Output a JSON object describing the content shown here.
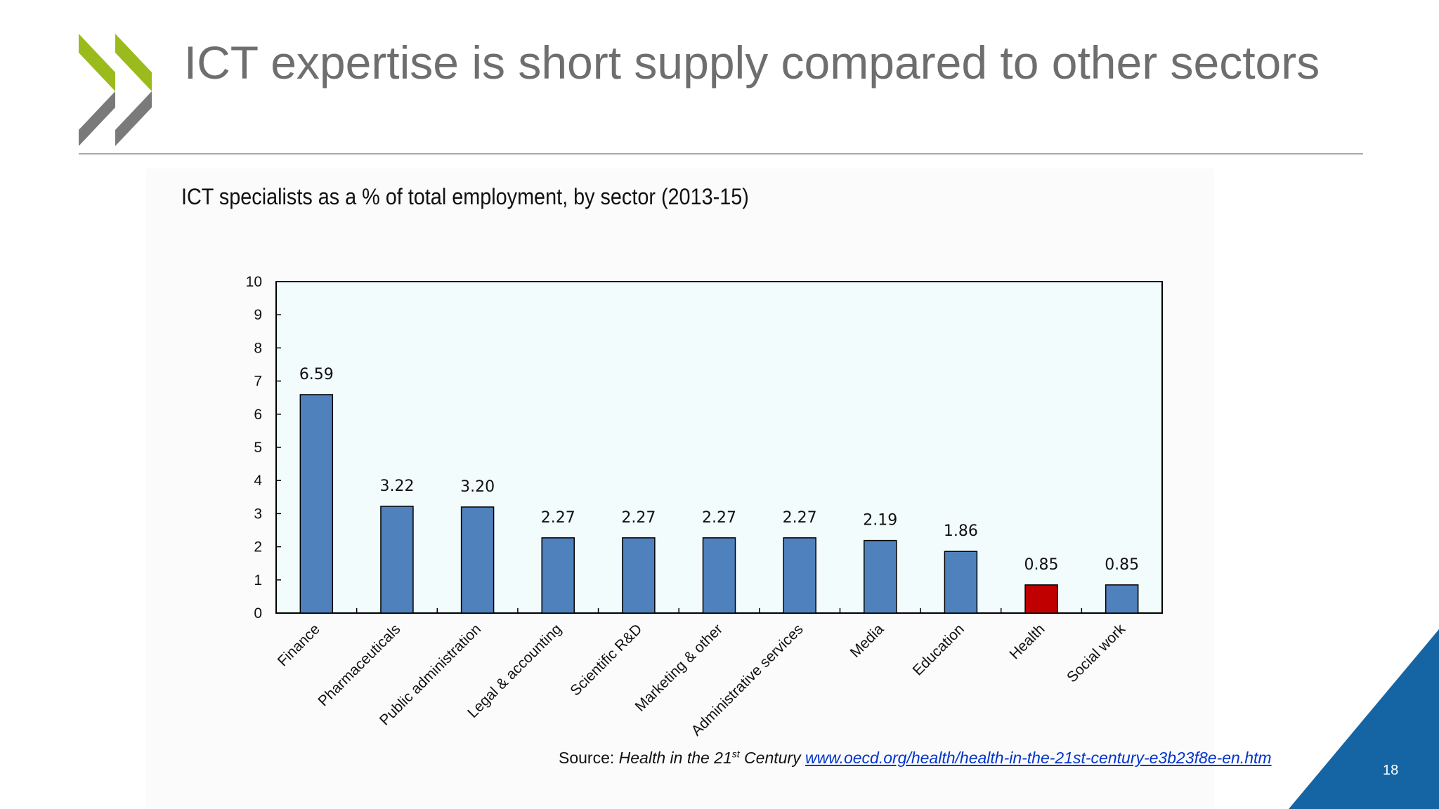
{
  "slide": {
    "title": "ICT expertise is short supply compared to other sectors",
    "page_number": "18",
    "colors": {
      "accent_green": "#9bbb1c",
      "logo_gray": "#7a7a7a",
      "corner_blue": "#1565a4",
      "bar_blue": "#4f81bd",
      "bar_highlight": "#c00000"
    }
  },
  "source": {
    "prefix": "Source: ",
    "italic_title": "Health in the 21",
    "sup": "st",
    "italic_after": " Century ",
    "link_text": "www.oecd.org/health/health-in-the-21st-century-e3b23f8e-en.htm"
  },
  "chart_data": {
    "type": "bar",
    "title": "ICT specialists as a % of total employment, by sector (2013-15)",
    "categories": [
      "Finance",
      "Pharmaceuticals",
      "Public administration",
      "Legal & accounting",
      "Scientific R&D",
      "Marketing & other",
      "Administrative services",
      "Media",
      "Education",
      "Health",
      "Social work"
    ],
    "values": [
      6.59,
      3.22,
      3.2,
      2.27,
      2.27,
      2.27,
      2.27,
      2.19,
      1.86,
      0.85,
      0.85
    ],
    "data_labels": [
      "6.59",
      "3.22",
      "3.20",
      "2.27",
      "2.27",
      "2.27",
      "2.27",
      "2.19",
      "1.86",
      "0.85",
      "0.85"
    ],
    "highlight_category": "Health",
    "ylim": [
      0,
      10
    ],
    "yticks": [
      0,
      1,
      2,
      3,
      4,
      5,
      6,
      7,
      8,
      9,
      10
    ],
    "xlabel": "",
    "ylabel": "",
    "grid": false,
    "legend": false
  }
}
